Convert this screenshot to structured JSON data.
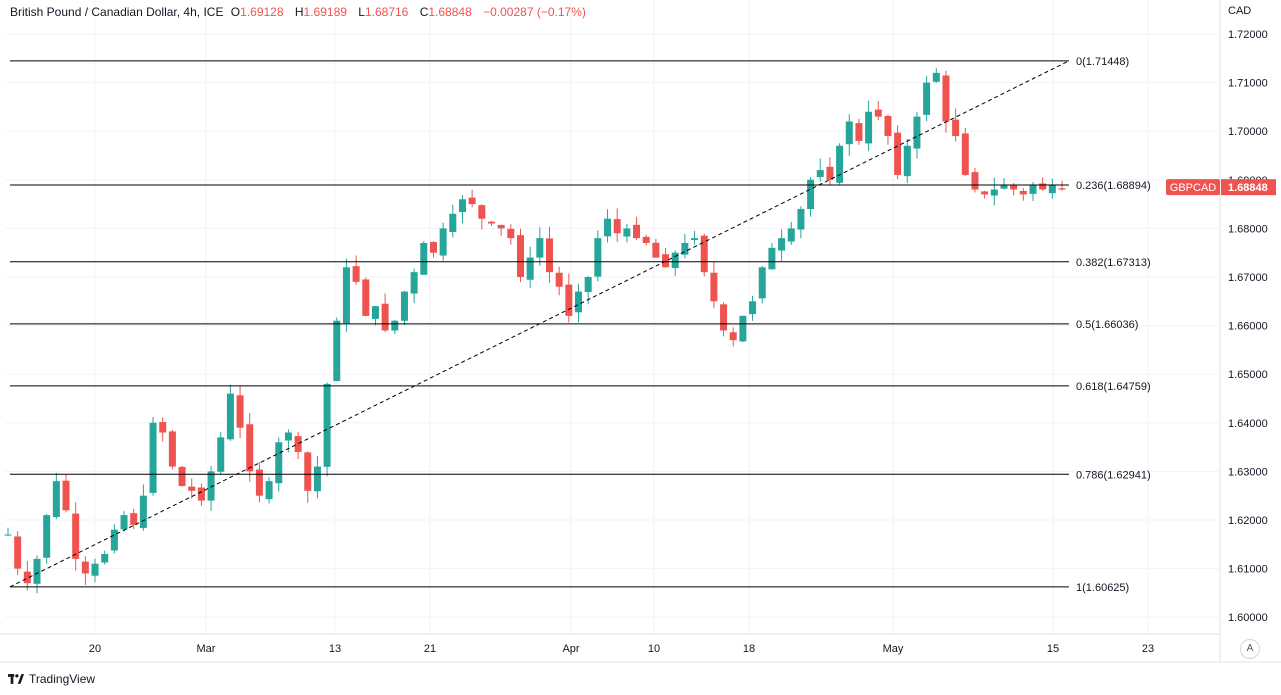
{
  "header": {
    "symbol_text": "British Pound / Canadian Dollar, 4h, ICE",
    "open_label": "O",
    "open": "1.69128",
    "high_label": "H",
    "high": "1.69189",
    "low_label": "L",
    "low": "1.68716",
    "close_label": "C",
    "close": "1.68848",
    "change": "−0.00287 (−0.17%)"
  },
  "currency": "CAD",
  "price_tag": {
    "symbol": "GBPCAD",
    "value": "1.68848"
  },
  "footer": {
    "brand": "TradingView"
  },
  "auto_button": "A",
  "colors": {
    "up": "#26a69a",
    "down": "#ef5350",
    "line": "#000000",
    "grid": "#f0f3fa"
  },
  "chart_data": {
    "type": "candlestick",
    "y_ticks": [
      "1.72000",
      "1.71000",
      "1.70000",
      "1.69000",
      "1.68000",
      "1.67000",
      "1.66000",
      "1.65000",
      "1.64000",
      "1.63000",
      "1.62000",
      "1.61000",
      "1.60000"
    ],
    "y_tick_values": [
      1.72,
      1.71,
      1.7,
      1.69,
      1.68,
      1.67,
      1.66,
      1.65,
      1.64,
      1.63,
      1.62,
      1.61,
      1.6
    ],
    "x_ticks": [
      "20",
      "Mar",
      "13",
      "21",
      "Apr",
      "10",
      "18",
      "May",
      "15",
      "23"
    ],
    "fib_levels": [
      {
        "ratio": "0",
        "price": 1.71448,
        "label": "0(1.71448)"
      },
      {
        "ratio": "0.236",
        "price": 1.68894,
        "label": "0.236(1.68894)"
      },
      {
        "ratio": "0.382",
        "price": 1.67313,
        "label": "0.382(1.67313)"
      },
      {
        "ratio": "0.5",
        "price": 1.66036,
        "label": "0.5(1.66036)"
      },
      {
        "ratio": "0.618",
        "price": 1.64759,
        "label": "0.618(1.64759)"
      },
      {
        "ratio": "0.786",
        "price": 1.62941,
        "label": "0.786(1.62941)"
      },
      {
        "ratio": "1",
        "price": 1.60625,
        "label": "1(1.60625)"
      }
    ],
    "trend_line": {
      "from": 1.60625,
      "to": 1.71448
    },
    "close_path": [
      1.617,
      1.61,
      1.607,
      1.612,
      1.621,
      1.628,
      1.622,
      1.612,
      1.609,
      1.611,
      1.613,
      1.618,
      1.621,
      1.619,
      1.625,
      1.64,
      1.638,
      1.631,
      1.627,
      1.626,
      1.624,
      1.63,
      1.637,
      1.646,
      1.639,
      1.63,
      1.625,
      1.628,
      1.636,
      1.638,
      1.634,
      1.626,
      1.631,
      1.648,
      1.661,
      1.672,
      1.669,
      1.662,
      1.664,
      1.659,
      1.661,
      1.667,
      1.671,
      1.677,
      1.675,
      1.68,
      1.683,
      1.686,
      1.685,
      1.682,
      1.681,
      1.68,
      1.678,
      1.67,
      1.674,
      1.678,
      1.671,
      1.668,
      1.662,
      1.667,
      1.67,
      1.678,
      1.682,
      1.679,
      1.68,
      1.678,
      1.677,
      1.674,
      1.672,
      1.675,
      1.677,
      1.678,
      1.671,
      1.665,
      1.659,
      1.657,
      1.662,
      1.665,
      1.672,
      1.676,
      1.678,
      1.68,
      1.684,
      1.69,
      1.692,
      1.69,
      1.697,
      1.702,
      1.698,
      1.704,
      1.703,
      1.699,
      1.691,
      1.697,
      1.703,
      1.71,
      1.712,
      1.702,
      1.699,
      1.691,
      1.688,
      1.687,
      1.688,
      1.689,
      1.688,
      1.687,
      1.689,
      1.688,
      1.689,
      1.688
    ]
  }
}
